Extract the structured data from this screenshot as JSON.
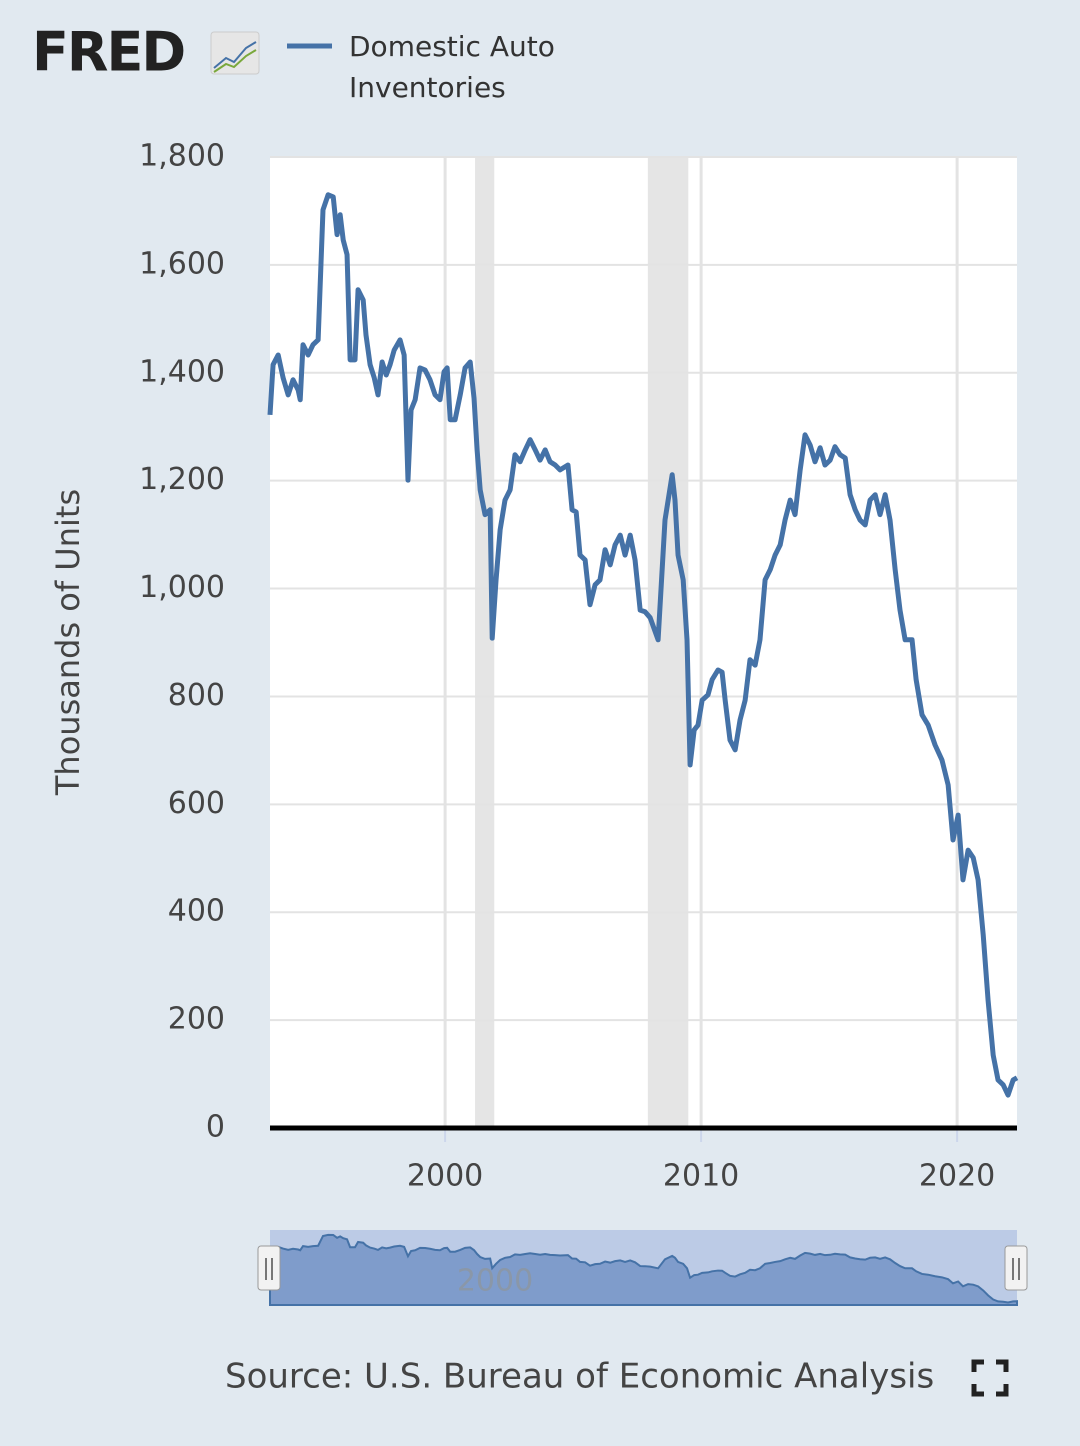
{
  "chart_data": {
    "type": "line",
    "logo": "FRED",
    "source": "Source: U.S. Bureau of Economic Analysis",
    "y_label": "Thousands of Units",
    "x": [
      1993.16,
      1993.28,
      1993.48,
      1993.67,
      1993.87,
      1994.06,
      1994.26,
      1994.34,
      1994.45,
      1994.65,
      1994.84,
      1995.04,
      1995.23,
      1995.43,
      1995.63,
      1995.78,
      1995.9,
      1996.02,
      1996.17,
      1996.29,
      1996.48,
      1996.6,
      1996.8,
      1996.91,
      1997.07,
      1997.23,
      1997.38,
      1997.54,
      1997.7,
      1997.85,
      1998.01,
      1998.24,
      1998.4,
      1998.55,
      1998.67,
      1998.83,
      1999.02,
      1999.22,
      1999.41,
      1999.61,
      1999.8,
      1999.96,
      2000.08,
      2000.2,
      2000.39,
      2000.59,
      2000.78,
      2000.98,
      2001.13,
      2001.25,
      2001.37,
      2001.56,
      2001.76,
      2001.84,
      2001.99,
      2002.15,
      2002.34,
      2002.54,
      2002.73,
      2002.93,
      2003.13,
      2003.32,
      2003.52,
      2003.71,
      2003.91,
      2004.1,
      2004.3,
      2004.49,
      2004.8,
      2004.96,
      2005.12,
      2005.27,
      2005.47,
      2005.66,
      2005.86,
      2006.05,
      2006.25,
      2006.45,
      2006.64,
      2006.84,
      2007.03,
      2007.23,
      2007.42,
      2007.62,
      2007.81,
      2008.01,
      2008.32,
      2008.59,
      2008.87,
      2008.98,
      2009.1,
      2009.3,
      2009.45,
      2009.57,
      2009.73,
      2009.88,
      2010.04,
      2010.27,
      2010.43,
      2010.66,
      2010.82,
      2010.94,
      2011.13,
      2011.33,
      2011.52,
      2011.72,
      2011.91,
      2012.11,
      2012.3,
      2012.5,
      2012.7,
      2012.89,
      2013.09,
      2013.28,
      2013.48,
      2013.67,
      2013.87,
      2014.06,
      2014.26,
      2014.45,
      2014.65,
      2014.84,
      2015.04,
      2015.23,
      2015.43,
      2015.63,
      2015.82,
      2016.02,
      2016.21,
      2016.41,
      2016.6,
      2016.8,
      2016.99,
      2017.19,
      2017.38,
      2017.58,
      2017.77,
      2017.97,
      2018.24,
      2018.4,
      2018.63,
      2018.87,
      2019.14,
      2019.41,
      2019.65,
      2019.84,
      2020.04,
      2020.23,
      2020.43,
      2020.63,
      2020.82,
      2021.02,
      2021.21,
      2021.41,
      2021.6,
      2021.8,
      2021.99,
      2022.19,
      2022.34
    ],
    "series": [
      {
        "name": "Domestic Auto Inventories",
        "color": "#4572a7",
        "values": [
          1322,
          1415,
          1433,
          1391,
          1359,
          1387,
          1368,
          1350,
          1452,
          1433,
          1452,
          1461,
          1702,
          1730,
          1726,
          1656,
          1693,
          1646,
          1619,
          1424,
          1424,
          1554,
          1535,
          1470,
          1415,
          1391,
          1359,
          1420,
          1396,
          1415,
          1442,
          1461,
          1433,
          1201,
          1331,
          1350,
          1409,
          1405,
          1387,
          1359,
          1350,
          1402,
          1409,
          1313,
          1313,
          1359,
          1409,
          1420,
          1353,
          1257,
          1183,
          1137,
          1146,
          908,
          1016,
          1109,
          1164,
          1183,
          1248,
          1235,
          1257,
          1276,
          1257,
          1238,
          1257,
          1235,
          1229,
          1220,
          1229,
          1146,
          1142,
          1062,
          1053,
          970,
          1007,
          1016,
          1072,
          1044,
          1081,
          1099,
          1062,
          1099,
          1053,
          960,
          957,
          946,
          905,
          1127,
          1211,
          1164,
          1062,
          1016,
          905,
          673,
          738,
          747,
          793,
          803,
          831,
          849,
          845,
          793,
          719,
          701,
          756,
          793,
          868,
          858,
          905,
          1016,
          1035,
          1062,
          1081,
          1127,
          1164,
          1137,
          1220,
          1285,
          1266,
          1235,
          1261,
          1229,
          1238,
          1263,
          1248,
          1242,
          1174,
          1146,
          1127,
          1118,
          1164,
          1174,
          1137,
          1174,
          1127,
          1035,
          960,
          905,
          905,
          831,
          766,
          747,
          710,
          682,
          636,
          534,
          580,
          460,
          515,
          501,
          460,
          358,
          237,
          135,
          89,
          80,
          61,
          89,
          93
        ]
      }
    ],
    "recessions": [
      [
        2001.17,
        2001.92
      ],
      [
        2007.92,
        2009.5
      ]
    ],
    "xlim": [
      1993.16,
      2022.34
    ],
    "xticks": [
      2000,
      2010,
      2020
    ],
    "ylim": [
      0,
      1800
    ],
    "yticks": [
      0,
      200,
      400,
      600,
      800,
      {
        "value": 1000,
        "label": "1,000"
      },
      {
        "value": 1200,
        "label": "1,200"
      },
      {
        "value": 1400,
        "label": "1,400"
      },
      {
        "value": 1600,
        "label": "1,600"
      },
      {
        "value": 1800,
        "label": "1,800"
      }
    ],
    "grid": true
  }
}
